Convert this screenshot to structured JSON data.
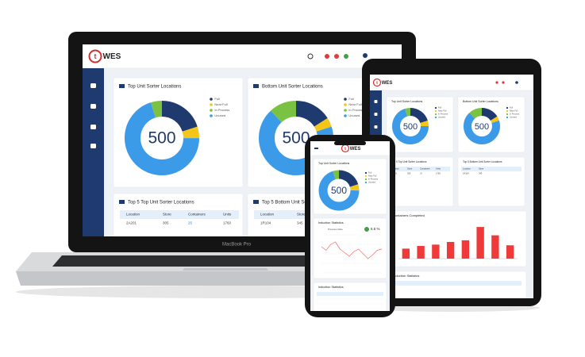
{
  "brand": "WES",
  "laptop_label": "MacBook Pro",
  "donuts": [
    {
      "title": "Top Unit Sorter Locations",
      "center": "500",
      "segments": [
        {
          "name": "Full",
          "color": "#1f3a6e",
          "value": 100
        },
        {
          "name": "Near Full",
          "color": "#f5c518",
          "value": 25
        },
        {
          "name": "In Process",
          "color": "#7cc242",
          "value": 25
        },
        {
          "name": "Unused",
          "color": "#3b9be8",
          "value": 350
        }
      ]
    },
    {
      "title": "Bottom Unit Sorter Locations",
      "center": "500",
      "segments": [
        {
          "name": "Full",
          "color": "#1f3a6e",
          "value": 80
        },
        {
          "name": "Near Full",
          "color": "#f5c518",
          "value": 20
        },
        {
          "name": "In Process",
          "color": "#7cc242",
          "value": 60
        },
        {
          "name": "Unused",
          "color": "#3b9be8",
          "value": 340
        }
      ]
    }
  ],
  "tables": [
    {
      "title": "Top 5 Top Unit Sorter Locations",
      "columns": [
        "Location",
        "Store",
        "Containers",
        "Units"
      ],
      "rows": [
        [
          "2A201",
          "305",
          "25",
          "1760"
        ]
      ]
    },
    {
      "title": "Top 5 Bottom Unit Sorter Locations",
      "columns": [
        "Location",
        "Store"
      ],
      "rows": [
        [
          "1R104",
          "345"
        ]
      ]
    }
  ],
  "containers_completed": {
    "type": "bar",
    "title": "Containers Completed",
    "color": "#f03a3a",
    "values": [
      30,
      38,
      42,
      50,
      55,
      95,
      70,
      40
    ],
    "ylim": [
      0,
      100
    ]
  },
  "induction": {
    "type": "line",
    "title": "Induction Statistics",
    "subtitle": "Previous Rate",
    "rate": "5.5 %",
    "color": "#f07070",
    "values": [
      110,
      95,
      120,
      130,
      100,
      85,
      70,
      90,
      100,
      80,
      60,
      75,
      95,
      100
    ],
    "ylim": [
      0,
      160
    ]
  }
}
